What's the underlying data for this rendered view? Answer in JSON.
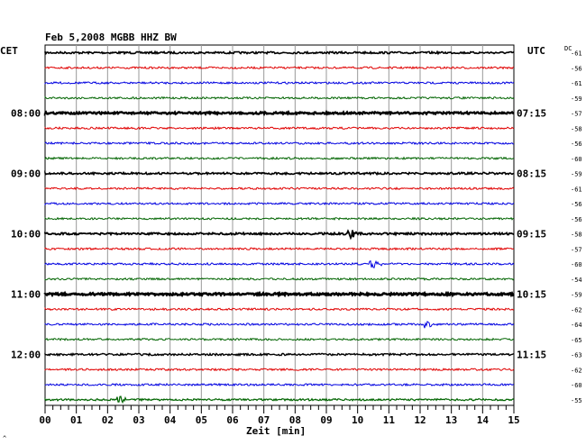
{
  "chart_data": {
    "type": "line",
    "title": "Feb 5,2008    MGBB HHZ BW",
    "left_zone": "CET",
    "right_zone": "UTC",
    "dc_label": "DC",
    "xlabel": "Zeit [min]",
    "x_ticks": [
      "00",
      "01",
      "02",
      "03",
      "04",
      "05",
      "06",
      "07",
      "08",
      "09",
      "10",
      "11",
      "12",
      "13",
      "14",
      "15"
    ],
    "xlim": [
      0,
      15
    ],
    "grid": true,
    "trace_colors": [
      "#000000",
      "#e00000",
      "#0000e0",
      "#006400"
    ],
    "cet_labels": [
      {
        "text": "08:00",
        "row": 4
      },
      {
        "text": "09:00",
        "row": 8
      },
      {
        "text": "10:00",
        "row": 12
      },
      {
        "text": "11:00",
        "row": 16
      },
      {
        "text": "12:00",
        "row": 20
      }
    ],
    "utc_labels": [
      {
        "text": "07:15",
        "row": 4
      },
      {
        "text": "08:15",
        "row": 8
      },
      {
        "text": "09:15",
        "row": 12
      },
      {
        "text": "10:15",
        "row": 16
      },
      {
        "text": "11:15",
        "row": 20
      }
    ],
    "dc_values": [
      "-61",
      "-56",
      "-61",
      "-59",
      "-57",
      "-58",
      "-56",
      "-60",
      "-59",
      "-61",
      "-56",
      "-56",
      "-58",
      "-57",
      "-60",
      "-54",
      "-59",
      "-62",
      "-64",
      "-65",
      "-63",
      "-62",
      "-60",
      "-55"
    ],
    "events": [
      {
        "row": 12,
        "minute": 9.8,
        "amplitude": 6
      },
      {
        "row": 14,
        "minute": 10.5,
        "amplitude": 7
      },
      {
        "row": 18,
        "minute": 12.2,
        "amplitude": 6
      },
      {
        "row": 23,
        "minute": 2.4,
        "amplitude": 5
      }
    ],
    "trace_widths": [
      1.6,
      1,
      1,
      1,
      2.4,
      1,
      1,
      1,
      1.6,
      1,
      1,
      1,
      1.8,
      1,
      1,
      1,
      2.6,
      1,
      1,
      1,
      1.4,
      1,
      1,
      1.2
    ]
  },
  "corner_mark": "^"
}
